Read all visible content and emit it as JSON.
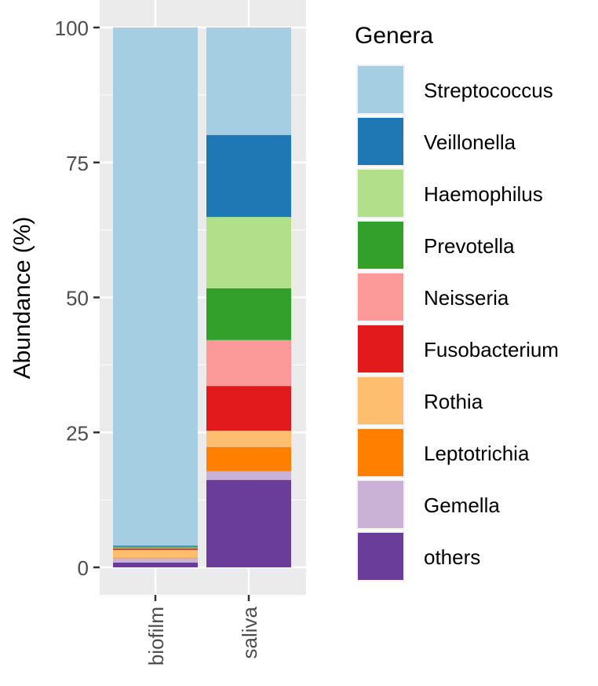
{
  "chart_data": {
    "type": "bar",
    "stacked": true,
    "title": "",
    "xlabel": "",
    "ylabel": "Abundance (%)",
    "ylim": [
      0,
      100
    ],
    "yticks": [
      "0",
      "25",
      "50",
      "75",
      "100"
    ],
    "categories": [
      "biofilm",
      "saliva"
    ],
    "legend_title": "Genera",
    "legend_position": "right",
    "series": [
      {
        "name": "Streptococcus",
        "color": "#A6CEE3",
        "values": [
          96.0,
          19.9
        ]
      },
      {
        "name": "Veillonella",
        "color": "#1F78B4",
        "values": [
          0.2,
          15.2
        ]
      },
      {
        "name": "Haemophilus",
        "color": "#B2DF8A",
        "values": [
          0.1,
          13.2
        ]
      },
      {
        "name": "Prevotella",
        "color": "#33A02C",
        "values": [
          0.2,
          9.6
        ]
      },
      {
        "name": "Neisseria",
        "color": "#FB9A99",
        "values": [
          0.1,
          8.5
        ]
      },
      {
        "name": "Fusobacterium",
        "color": "#E31A1C",
        "values": [
          0.2,
          8.3
        ]
      },
      {
        "name": "Rothia",
        "color": "#FDBF6F",
        "values": [
          1.4,
          3.0
        ]
      },
      {
        "name": "Leptotrichia",
        "color": "#FF7F00",
        "values": [
          0.1,
          4.5
        ]
      },
      {
        "name": "Gemella",
        "color": "#CAB2D6",
        "values": [
          0.8,
          1.6
        ]
      },
      {
        "name": "others",
        "color": "#6A3D9A",
        "values": [
          0.9,
          16.2
        ]
      }
    ]
  }
}
